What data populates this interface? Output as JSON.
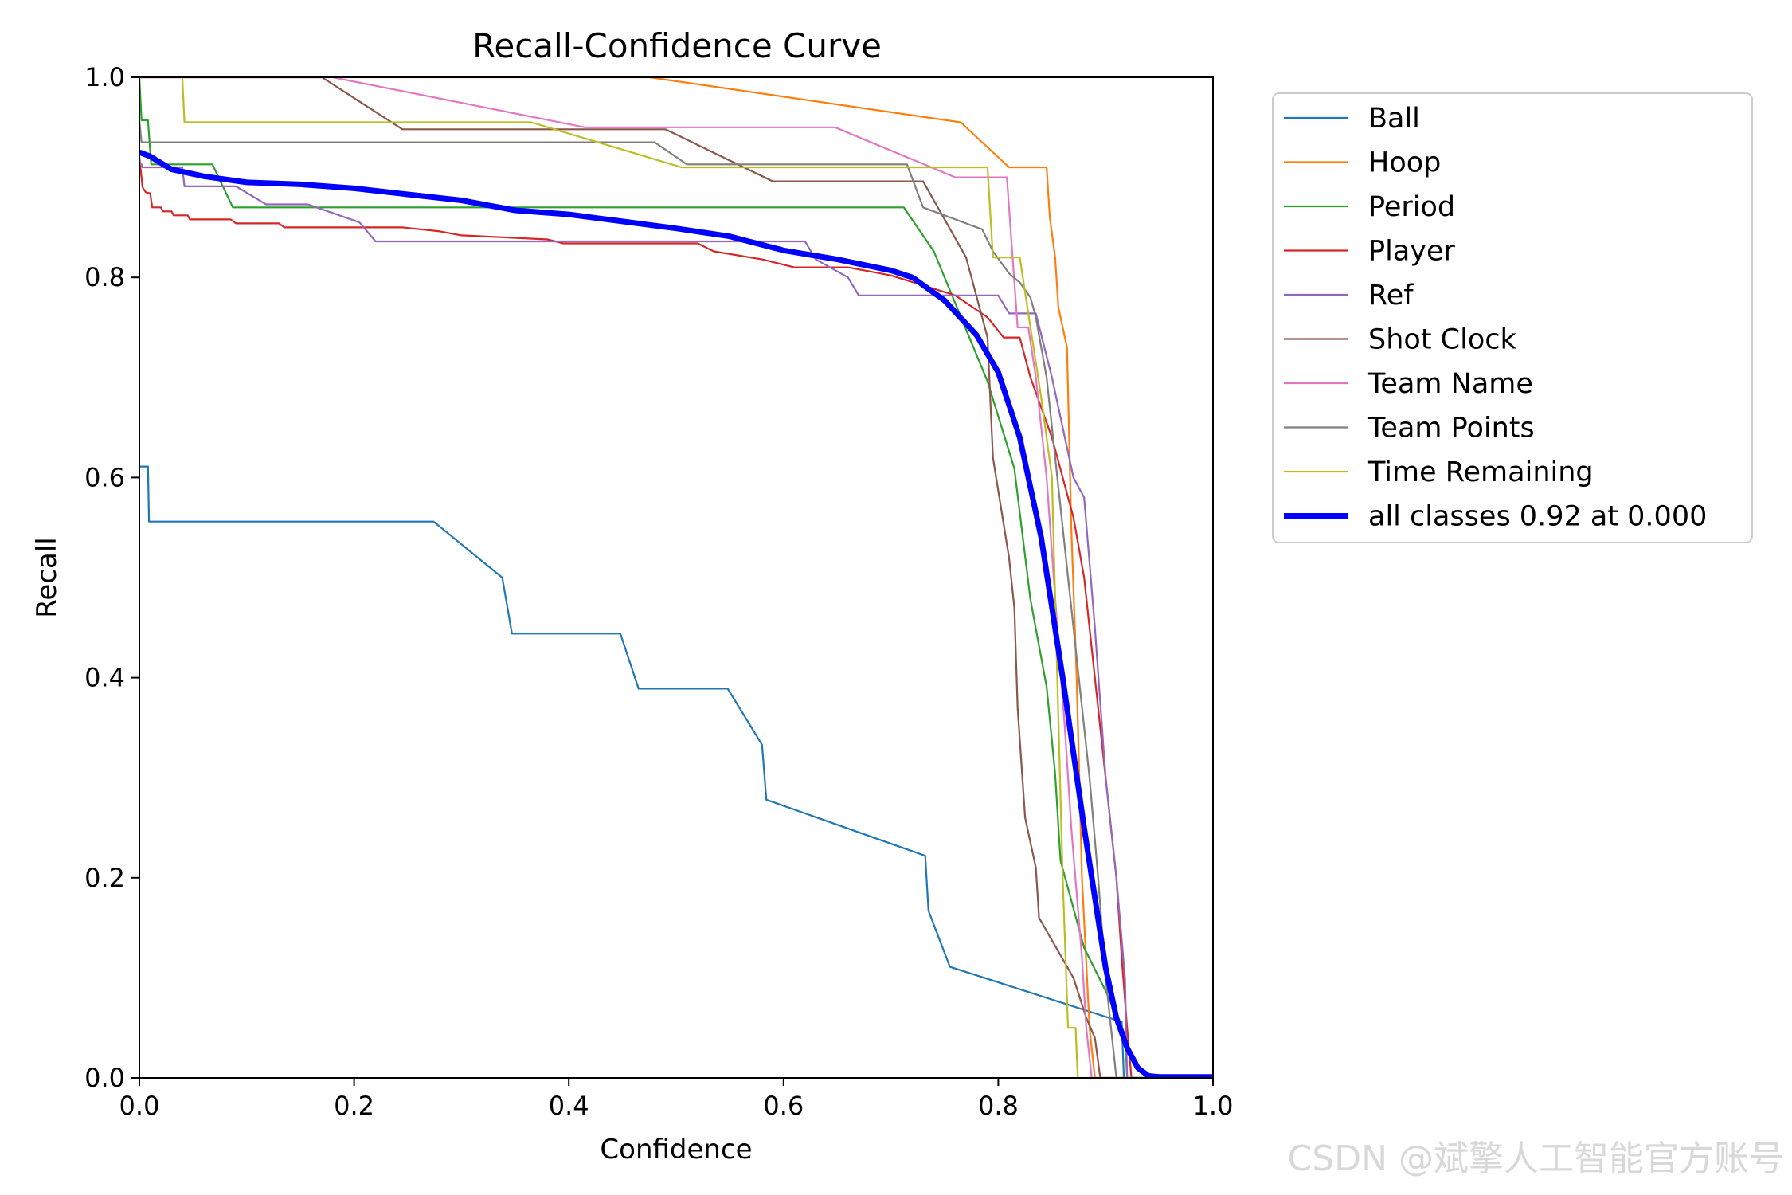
{
  "watermark": "CSDN @斌擎人工智能官方账号",
  "chart_data": {
    "type": "line",
    "title": "Recall-Confidence Curve",
    "xlabel": "Confidence",
    "ylabel": "Recall",
    "xlim": [
      0.0,
      1.0
    ],
    "ylim": [
      0.0,
      1.0
    ],
    "xticks": [
      "0.0",
      "0.2",
      "0.4",
      "0.6",
      "0.8",
      "1.0"
    ],
    "yticks": [
      "0.0",
      "0.2",
      "0.4",
      "0.6",
      "0.8",
      "1.0"
    ],
    "grid": false,
    "legend_position": "outside-right-top",
    "series": [
      {
        "name": "Ball",
        "color": "#1f77b4",
        "width": 2.2,
        "points": [
          [
            0,
            0.611
          ],
          [
            0.008,
            0.611
          ],
          [
            0.009,
            0.556
          ],
          [
            0.274,
            0.556
          ],
          [
            0.338,
            0.5
          ],
          [
            0.347,
            0.444
          ],
          [
            0.448,
            0.444
          ],
          [
            0.465,
            0.389
          ],
          [
            0.548,
            0.389
          ],
          [
            0.58,
            0.333
          ],
          [
            0.584,
            0.278
          ],
          [
            0.732,
            0.222
          ],
          [
            0.735,
            0.167
          ],
          [
            0.755,
            0.111
          ],
          [
            0.915,
            0.056
          ],
          [
            0.917,
            0.0
          ],
          [
            1.0,
            0.0
          ]
        ]
      },
      {
        "name": "Hoop",
        "color": "#ff7f0e",
        "width": 2.2,
        "points": [
          [
            0,
            1.0
          ],
          [
            0.475,
            1.0
          ],
          [
            0.765,
            0.955
          ],
          [
            0.81,
            0.91
          ],
          [
            0.845,
            0.91
          ],
          [
            0.848,
            0.86
          ],
          [
            0.853,
            0.82
          ],
          [
            0.856,
            0.77
          ],
          [
            0.864,
            0.73
          ],
          [
            0.868,
            0.55
          ],
          [
            0.873,
            0.4
          ],
          [
            0.878,
            0.2
          ],
          [
            0.885,
            0.05
          ],
          [
            0.89,
            0.0
          ],
          [
            1.0,
            0.0
          ]
        ]
      },
      {
        "name": "Period",
        "color": "#2ca02c",
        "width": 2.2,
        "points": [
          [
            0,
            1.0
          ],
          [
            0.002,
            0.957
          ],
          [
            0.008,
            0.957
          ],
          [
            0.011,
            0.913
          ],
          [
            0.068,
            0.913
          ],
          [
            0.087,
            0.87
          ],
          [
            0.712,
            0.87
          ],
          [
            0.74,
            0.826
          ],
          [
            0.79,
            0.696
          ],
          [
            0.815,
            0.609
          ],
          [
            0.83,
            0.478
          ],
          [
            0.845,
            0.391
          ],
          [
            0.853,
            0.304
          ],
          [
            0.858,
            0.217
          ],
          [
            0.88,
            0.13
          ],
          [
            0.9,
            0.087
          ],
          [
            0.918,
            0.043
          ],
          [
            0.92,
            0.0
          ],
          [
            1.0,
            0.0
          ]
        ]
      },
      {
        "name": "Player",
        "color": "#d62728",
        "width": 2.2,
        "points": [
          [
            0,
            0.92
          ],
          [
            0.003,
            0.89
          ],
          [
            0.006,
            0.885
          ],
          [
            0.01,
            0.884
          ],
          [
            0.012,
            0.87
          ],
          [
            0.02,
            0.87
          ],
          [
            0.022,
            0.866
          ],
          [
            0.03,
            0.866
          ],
          [
            0.032,
            0.862
          ],
          [
            0.045,
            0.862
          ],
          [
            0.047,
            0.858
          ],
          [
            0.085,
            0.858
          ],
          [
            0.09,
            0.854
          ],
          [
            0.13,
            0.854
          ],
          [
            0.135,
            0.85
          ],
          [
            0.245,
            0.85
          ],
          [
            0.28,
            0.846
          ],
          [
            0.3,
            0.842
          ],
          [
            0.38,
            0.838
          ],
          [
            0.395,
            0.834
          ],
          [
            0.52,
            0.834
          ],
          [
            0.535,
            0.826
          ],
          [
            0.58,
            0.818
          ],
          [
            0.61,
            0.81
          ],
          [
            0.66,
            0.81
          ],
          [
            0.7,
            0.802
          ],
          [
            0.76,
            0.782
          ],
          [
            0.79,
            0.76
          ],
          [
            0.805,
            0.74
          ],
          [
            0.82,
            0.74
          ],
          [
            0.83,
            0.7
          ],
          [
            0.85,
            0.64
          ],
          [
            0.86,
            0.6
          ],
          [
            0.87,
            0.56
          ],
          [
            0.88,
            0.5
          ],
          [
            0.89,
            0.4
          ],
          [
            0.9,
            0.3
          ],
          [
            0.91,
            0.2
          ],
          [
            0.915,
            0.12
          ],
          [
            0.92,
            0.05
          ],
          [
            0.924,
            0.0
          ],
          [
            1.0,
            0.0
          ]
        ]
      },
      {
        "name": "Ref",
        "color": "#9467bd",
        "width": 2.2,
        "points": [
          [
            0,
            0.913
          ],
          [
            0.002,
            0.913
          ],
          [
            0.003,
            0.91
          ],
          [
            0.04,
            0.91
          ],
          [
            0.042,
            0.891
          ],
          [
            0.09,
            0.891
          ],
          [
            0.118,
            0.873
          ],
          [
            0.157,
            0.873
          ],
          [
            0.205,
            0.855
          ],
          [
            0.22,
            0.836
          ],
          [
            0.62,
            0.836
          ],
          [
            0.63,
            0.818
          ],
          [
            0.66,
            0.8
          ],
          [
            0.67,
            0.782
          ],
          [
            0.8,
            0.782
          ],
          [
            0.81,
            0.764
          ],
          [
            0.835,
            0.764
          ],
          [
            0.85,
            0.7
          ],
          [
            0.86,
            0.65
          ],
          [
            0.87,
            0.6
          ],
          [
            0.88,
            0.58
          ],
          [
            0.89,
            0.45
          ],
          [
            0.9,
            0.3
          ],
          [
            0.91,
            0.2
          ],
          [
            0.918,
            0.1
          ],
          [
            0.92,
            0.0
          ],
          [
            1.0,
            0.0
          ]
        ]
      },
      {
        "name": "Shot Clock",
        "color": "#8c564b",
        "width": 2.2,
        "points": [
          [
            0,
            1.0
          ],
          [
            0.17,
            1.0
          ],
          [
            0.245,
            0.948
          ],
          [
            0.49,
            0.948
          ],
          [
            0.59,
            0.896
          ],
          [
            0.73,
            0.896
          ],
          [
            0.77,
            0.82
          ],
          [
            0.79,
            0.74
          ],
          [
            0.795,
            0.62
          ],
          [
            0.81,
            0.52
          ],
          [
            0.815,
            0.47
          ],
          [
            0.818,
            0.37
          ],
          [
            0.825,
            0.26
          ],
          [
            0.835,
            0.21
          ],
          [
            0.838,
            0.16
          ],
          [
            0.87,
            0.1
          ],
          [
            0.882,
            0.06
          ],
          [
            0.89,
            0.04
          ],
          [
            0.895,
            0.0
          ],
          [
            1.0,
            0.0
          ]
        ]
      },
      {
        "name": "Team Name",
        "color": "#e377c2",
        "width": 2.2,
        "points": [
          [
            0,
            1.0
          ],
          [
            0.18,
            1.0
          ],
          [
            0.415,
            0.95
          ],
          [
            0.648,
            0.95
          ],
          [
            0.76,
            0.9
          ],
          [
            0.808,
            0.9
          ],
          [
            0.818,
            0.75
          ],
          [
            0.828,
            0.75
          ],
          [
            0.835,
            0.7
          ],
          [
            0.845,
            0.6
          ],
          [
            0.855,
            0.45
          ],
          [
            0.862,
            0.35
          ],
          [
            0.868,
            0.25
          ],
          [
            0.878,
            0.12
          ],
          [
            0.882,
            0.05
          ],
          [
            0.887,
            0.0
          ],
          [
            1.0,
            0.0
          ]
        ]
      },
      {
        "name": "Team Points",
        "color": "#7f7f7f",
        "width": 2.2,
        "points": [
          [
            0,
            0.957
          ],
          [
            0.002,
            0.935
          ],
          [
            0.48,
            0.935
          ],
          [
            0.51,
            0.913
          ],
          [
            0.715,
            0.913
          ],
          [
            0.73,
            0.87
          ],
          [
            0.785,
            0.848
          ],
          [
            0.795,
            0.826
          ],
          [
            0.81,
            0.804
          ],
          [
            0.82,
            0.795
          ],
          [
            0.83,
            0.78
          ],
          [
            0.835,
            0.76
          ],
          [
            0.845,
            0.7
          ],
          [
            0.85,
            0.65
          ],
          [
            0.86,
            0.55
          ],
          [
            0.87,
            0.45
          ],
          [
            0.875,
            0.4
          ],
          [
            0.885,
            0.3
          ],
          [
            0.893,
            0.2
          ],
          [
            0.9,
            0.1
          ],
          [
            0.91,
            0.0
          ],
          [
            1.0,
            0.0
          ]
        ]
      },
      {
        "name": "Time Remaining",
        "color": "#bcbd22",
        "width": 2.2,
        "points": [
          [
            0.04,
            1.0
          ],
          [
            0.042,
            0.955
          ],
          [
            0.365,
            0.955
          ],
          [
            0.505,
            0.91
          ],
          [
            0.79,
            0.91
          ],
          [
            0.795,
            0.82
          ],
          [
            0.82,
            0.82
          ],
          [
            0.83,
            0.75
          ],
          [
            0.84,
            0.68
          ],
          [
            0.85,
            0.6
          ],
          [
            0.855,
            0.4
          ],
          [
            0.86,
            0.2
          ],
          [
            0.865,
            0.05
          ],
          [
            0.872,
            0.05
          ],
          [
            0.874,
            0.0
          ],
          [
            1.0,
            0.0
          ]
        ]
      },
      {
        "name": "all classes 0.92 at 0.000",
        "color": "#0000ff",
        "width": 7,
        "points": [
          [
            0,
            0.925
          ],
          [
            0.01,
            0.921
          ],
          [
            0.03,
            0.908
          ],
          [
            0.06,
            0.901
          ],
          [
            0.1,
            0.895
          ],
          [
            0.15,
            0.893
          ],
          [
            0.2,
            0.889
          ],
          [
            0.25,
            0.883
          ],
          [
            0.3,
            0.877
          ],
          [
            0.35,
            0.867
          ],
          [
            0.4,
            0.863
          ],
          [
            0.45,
            0.856
          ],
          [
            0.5,
            0.849
          ],
          [
            0.55,
            0.841
          ],
          [
            0.6,
            0.827
          ],
          [
            0.65,
            0.818
          ],
          [
            0.7,
            0.807
          ],
          [
            0.72,
            0.8
          ],
          [
            0.75,
            0.777
          ],
          [
            0.78,
            0.742
          ],
          [
            0.8,
            0.705
          ],
          [
            0.82,
            0.64
          ],
          [
            0.84,
            0.54
          ],
          [
            0.86,
            0.4
          ],
          [
            0.88,
            0.25
          ],
          [
            0.9,
            0.11
          ],
          [
            0.91,
            0.06
          ],
          [
            0.92,
            0.03
          ],
          [
            0.93,
            0.01
          ],
          [
            0.94,
            0.002
          ],
          [
            0.95,
            0.001
          ],
          [
            1.0,
            0.001
          ]
        ]
      }
    ]
  }
}
